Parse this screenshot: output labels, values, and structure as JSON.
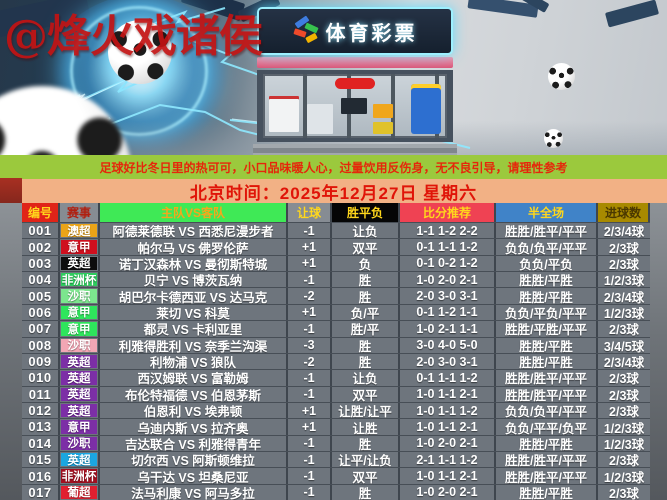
{
  "watermark": "@烽火戏诸侯",
  "hero": {
    "store_sign": "体育彩票"
  },
  "notice": {
    "text": "足球好比冬日里的热可可，小口品味暖人心，过量饮用反伤身，无不良引导，请理性参考"
  },
  "date_banner": {
    "text": "北京时间：2025年12月27日 星期六"
  },
  "colors": {
    "notice_bg": "#9bc93d",
    "notice_text": "#e5270b",
    "date_bg": "#f2b185",
    "date_text": "#e01408",
    "header_red": "#e02418",
    "header_green": "#3fe956",
    "header_black": "#050505",
    "header_pink_red": "#ef4253",
    "header_blue": "#4083c8",
    "header_olive": "#a88a00",
    "row_bg": "#6e757d",
    "row_text": "#ffffff",
    "header_text_yellow": "#ffd71c"
  },
  "table": {
    "headers": [
      "编号",
      "赛事",
      "主队VS客队",
      "让球",
      "胜平负",
      "比分推荐",
      "半全场",
      "进球数"
    ],
    "rows": [
      {
        "id": "001",
        "league": "澳超",
        "league_color": "#eba417",
        "teams": "阿德莱德联 VS 西悉尼漫步者",
        "handicap": "-1",
        "wdl": "让负",
        "scores": "1-1 1-2 2-2",
        "half_full": "胜胜/胜平/平平",
        "goals": "2/3/4球"
      },
      {
        "id": "002",
        "league": "意甲",
        "league_color": "#cf0f1e",
        "teams": "帕尔马 VS 佛罗伦萨",
        "handicap": "+1",
        "wdl": "双平",
        "scores": "0-1 1-1 1-2",
        "half_full": "负负/负平/平平",
        "goals": "2/3球"
      },
      {
        "id": "003",
        "league": "英超",
        "league_color": "#0d0d0d",
        "teams": "诺丁汉森林 VS 曼彻斯特城",
        "handicap": "+1",
        "wdl": "负",
        "scores": "0-1 0-2 1-2",
        "half_full": "负负/平负",
        "goals": "2/3球"
      },
      {
        "id": "004",
        "league": "非洲杯",
        "league_color": "#2ecc5e",
        "teams": "贝宁 VS 博茨瓦纳",
        "handicap": "-1",
        "wdl": "胜",
        "scores": "1-0 2-0 2-1",
        "half_full": "胜胜/平胜",
        "goals": "1/2/3球"
      },
      {
        "id": "005",
        "league": "沙职",
        "league_color": "#7ce68e",
        "teams": "胡巴尔卡德西亚 VS 达马克",
        "handicap": "-2",
        "wdl": "胜",
        "scores": "2-0 3-0 3-1",
        "half_full": "胜胜/平胜",
        "goals": "2/3/4球"
      },
      {
        "id": "006",
        "league": "意甲",
        "league_color": "#2ee55c",
        "teams": "莱切 VS 科莫",
        "handicap": "+1",
        "wdl": "负/平",
        "scores": "0-1 1-2 1-1",
        "half_full": "负负/平负/平平",
        "goals": "1/2/3球"
      },
      {
        "id": "007",
        "league": "意甲",
        "league_color": "#2ee55c",
        "teams": "都灵 VS 卡利亚里",
        "handicap": "-1",
        "wdl": "胜/平",
        "scores": "1-0 2-1 1-1",
        "half_full": "胜胜/平胜/平平",
        "goals": "2/3球"
      },
      {
        "id": "008",
        "league": "沙职",
        "league_color": "#f2a6b4",
        "teams": "利雅得胜利 VS 奈季兰沟渠",
        "handicap": "-3",
        "wdl": "胜",
        "scores": "3-0 4-0 5-0",
        "half_full": "胜胜/平胜",
        "goals": "3/4/5球"
      },
      {
        "id": "009",
        "league": "英超",
        "league_color": "#7c2fa6",
        "teams": "利物浦 VS 狼队",
        "handicap": "-2",
        "wdl": "胜",
        "scores": "2-0 3-0 3-1",
        "half_full": "胜胜/平胜",
        "goals": "2/3/4球"
      },
      {
        "id": "010",
        "league": "英超",
        "league_color": "#7c2fa6",
        "teams": "西汉姆联 VS 富勒姆",
        "handicap": "-1",
        "wdl": "让负",
        "scores": "0-1 1-1 1-2",
        "half_full": "胜胜/胜平/平平",
        "goals": "2/3球"
      },
      {
        "id": "011",
        "league": "英超",
        "league_color": "#7c2fa6",
        "teams": "布伦特福德 VS 伯恩茅斯",
        "handicap": "-1",
        "wdl": "双平",
        "scores": "1-0 1-1 2-1",
        "half_full": "胜胜/胜平/平平",
        "goals": "2/3球"
      },
      {
        "id": "012",
        "league": "英超",
        "league_color": "#7c2fa6",
        "teams": "伯恩利 VS 埃弗顿",
        "handicap": "+1",
        "wdl": "让胜/让平",
        "scores": "1-0 1-1 1-2",
        "half_full": "负负/负平/平平",
        "goals": "2/3球"
      },
      {
        "id": "013",
        "league": "意甲",
        "league_color": "#7c2fa6",
        "teams": "乌迪内斯 VS 拉齐奥",
        "handicap": "+1",
        "wdl": "让胜",
        "scores": "1-0 1-1 2-1",
        "half_full": "负负/平平/负平",
        "goals": "1/2/3球"
      },
      {
        "id": "014",
        "league": "沙职",
        "league_color": "#7c2fa6",
        "teams": "吉达联合 VS 利雅得青年",
        "handicap": "-1",
        "wdl": "胜",
        "scores": "1-0 2-0 2-1",
        "half_full": "胜胜/平胜",
        "goals": "1/2/3球"
      },
      {
        "id": "015",
        "league": "英超",
        "league_color": "#1ba6e0",
        "teams": "切尔西 VS 阿斯顿维拉",
        "handicap": "-1",
        "wdl": "让平/让负",
        "scores": "2-1 1-1 1-2",
        "half_full": "胜胜/胜平/平平",
        "goals": "2/3球"
      },
      {
        "id": "016",
        "league": "非洲杯",
        "league_color": "#a31020",
        "teams": "乌干达 VS 坦桑尼亚",
        "handicap": "-1",
        "wdl": "双平",
        "scores": "1-0 1-1 2-1",
        "half_full": "胜胜/胜平/平平",
        "goals": "1/2/3球"
      },
      {
        "id": "017",
        "league": "葡超",
        "league_color": "#e02030",
        "teams": "法马利康 VS 阿马多拉",
        "handicap": "-1",
        "wdl": "胜",
        "scores": "1-0 2-0 2-1",
        "half_full": "胜胜/平胜",
        "goals": "2/3球"
      }
    ]
  }
}
